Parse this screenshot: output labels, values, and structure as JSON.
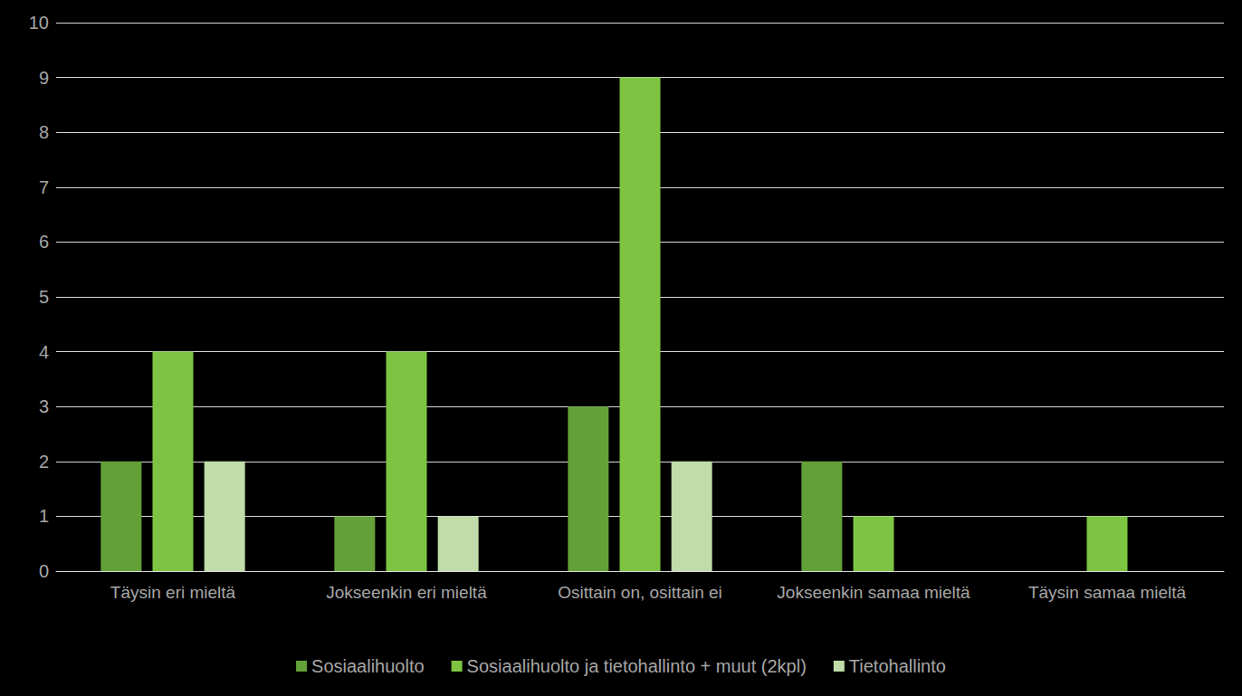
{
  "chart_data": {
    "type": "bar",
    "categories": [
      "Täysin eri mieltä",
      "Jokseenkin eri mieltä",
      "Osittain on, osittain ei",
      "Jokseenkin samaa mieltä",
      "Täysin samaa mieltä"
    ],
    "series": [
      {
        "name": "Sosiaalihuolto",
        "color": "#64a038",
        "values": [
          2,
          1,
          3,
          2,
          0
        ]
      },
      {
        "name": "Sosiaalihuolto ja tietohallinto + muut (2kpl)",
        "color": "#7dc443",
        "values": [
          4,
          4,
          9,
          1,
          1
        ]
      },
      {
        "name": "Tietohallinto",
        "color": "#bfdca9",
        "values": [
          2,
          1,
          2,
          0,
          0
        ]
      }
    ],
    "ylim": [
      0,
      10
    ],
    "yticks": [
      0,
      1,
      2,
      3,
      4,
      5,
      6,
      7,
      8,
      9,
      10
    ],
    "grid": true,
    "legend": "bottom"
  }
}
